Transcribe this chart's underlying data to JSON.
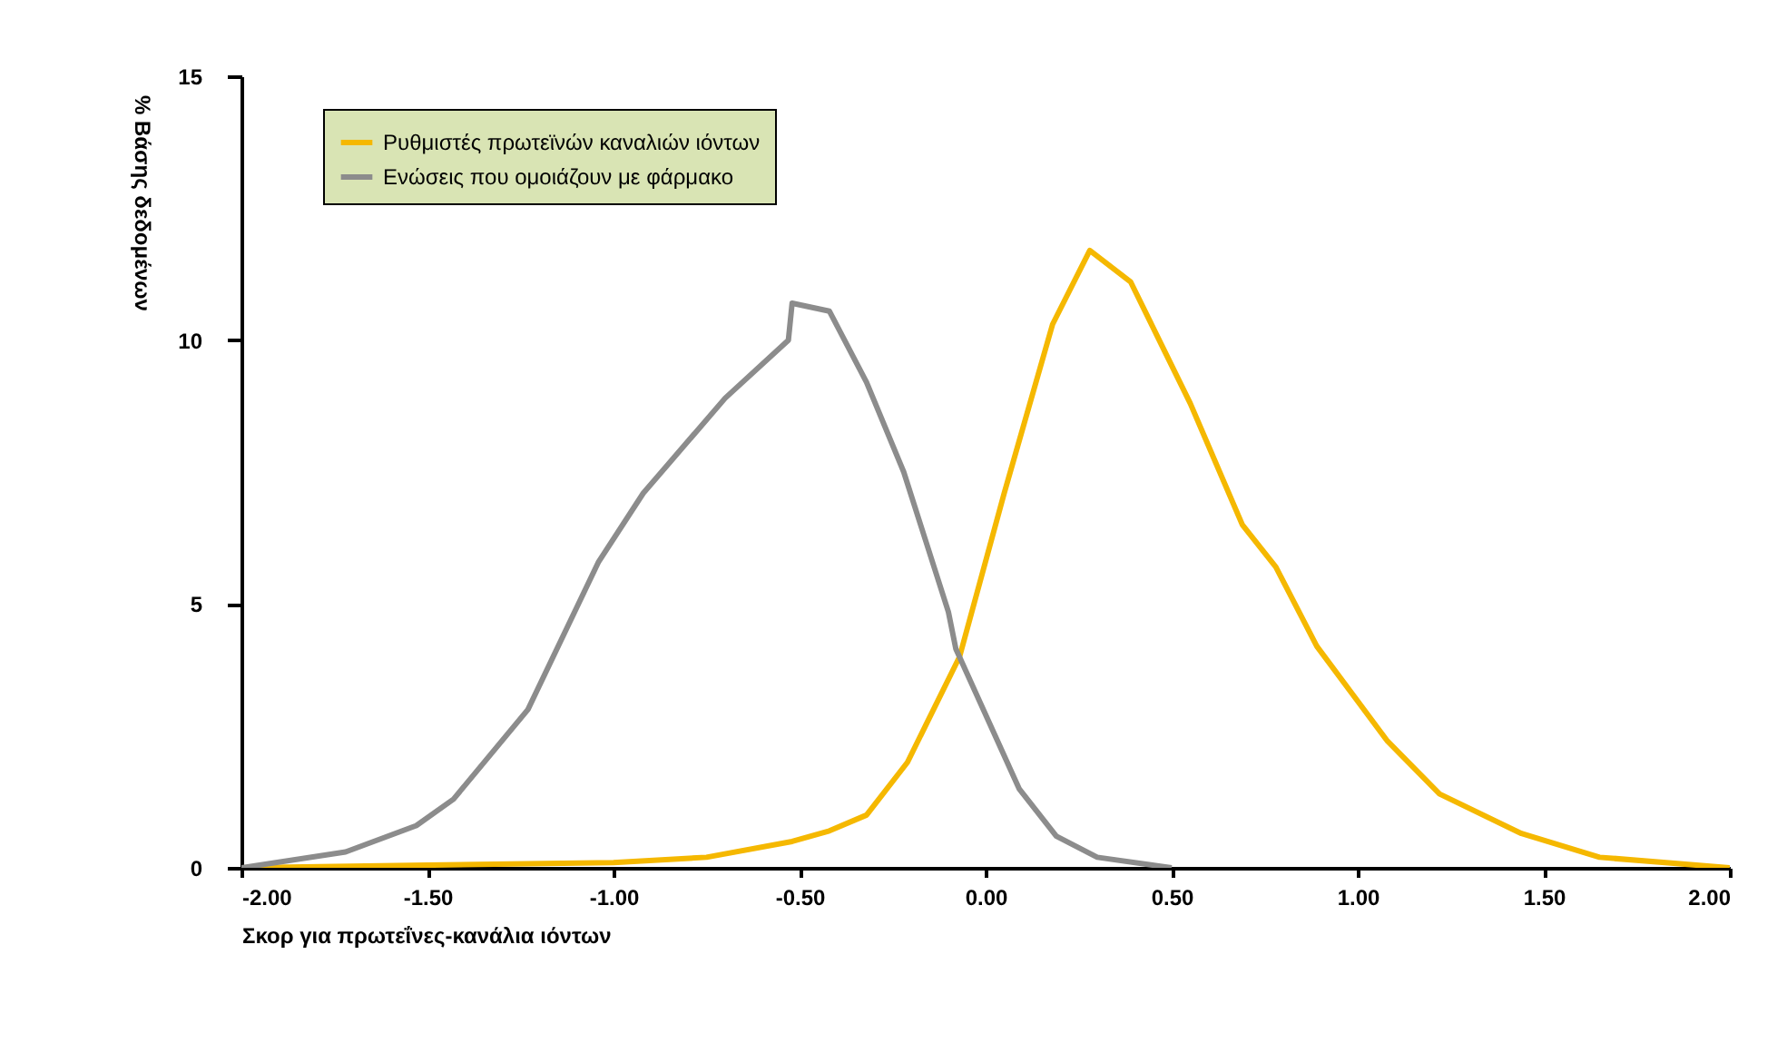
{
  "chart_data": {
    "type": "line",
    "xlabel": "Σκορ για πρωτεΐνες-κανάλια ιόντων",
    "ylabel": "% Βάσης δεδομένων",
    "series": [
      {
        "name": "Ρυθμιστές πρωτεϊνών καναλιών ιόντων",
        "color": "#f5b800",
        "x": [
          -2.0,
          -1.5,
          -1.0,
          -0.75,
          -0.52,
          -0.42,
          -0.32,
          -0.21,
          -0.07,
          0.05,
          0.18,
          0.28,
          0.39,
          0.55,
          0.69,
          0.78,
          0.89,
          1.08,
          1.22,
          1.44,
          1.65,
          2.0
        ],
        "values": [
          0,
          0.05,
          0.1,
          0.2,
          0.5,
          0.7,
          1.0,
          2.0,
          4.0,
          7.1,
          10.3,
          11.7,
          11.1,
          8.8,
          6.5,
          5.7,
          4.2,
          2.4,
          1.4,
          0.65,
          0.2,
          0
        ]
      },
      {
        "name": "Ενώσεις που ομοιάζουν με φάρμακο",
        "color": "#8c8c8c",
        "x": [
          -2.0,
          -1.72,
          -1.53,
          -1.43,
          -1.23,
          -1.04,
          -0.92,
          -0.7,
          -0.53,
          -0.52,
          -0.42,
          -0.32,
          -0.22,
          -0.1,
          -0.08,
          0.09,
          0.19,
          0.3,
          0.5
        ],
        "values": [
          0,
          0.3,
          0.8,
          1.3,
          3.0,
          5.8,
          7.1,
          8.9,
          10.0,
          10.7,
          10.55,
          9.2,
          7.5,
          4.85,
          4.15,
          1.5,
          0.6,
          0.2,
          0
        ]
      }
    ],
    "xlim": [
      -2,
      2
    ],
    "xticks": [
      {
        "value": -2,
        "label": "-2.00"
      },
      {
        "value": -1.5,
        "label": "-1.50"
      },
      {
        "value": -1,
        "label": "-1.00"
      },
      {
        "value": -0.5,
        "label": "-0.50"
      },
      {
        "value": 0,
        "label": "0.00"
      },
      {
        "value": 0.5,
        "label": "0.50"
      },
      {
        "value": 1,
        "label": "1.00"
      },
      {
        "value": 1.5,
        "label": "1.50"
      },
      {
        "value": 2,
        "label": "2.00"
      }
    ],
    "ylim": [
      0,
      15
    ],
    "yticks": [
      0,
      5,
      10,
      15
    ],
    "legend": "top left",
    "grid": false,
    "marker": "none",
    "line_style": "solid"
  }
}
